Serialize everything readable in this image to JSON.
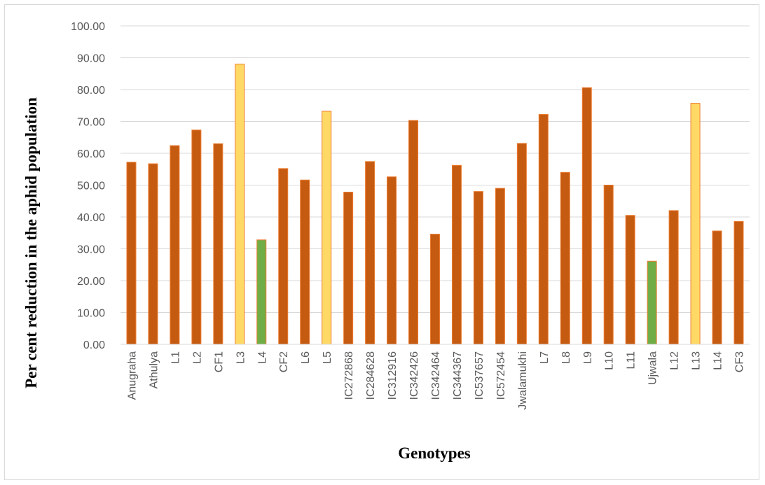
{
  "chart_data": {
    "type": "bar",
    "xlabel": "Genotypes",
    "ylabel": "Per cent reduction in the aphid population",
    "ylim": [
      0,
      100
    ],
    "yticks": [
      "0.00",
      "10.00",
      "20.00",
      "30.00",
      "40.00",
      "50.00",
      "60.00",
      "70.00",
      "80.00",
      "90.00",
      "100.00"
    ],
    "grid": true,
    "legend": "none",
    "categories": [
      "Anugraha",
      "Athulya",
      "L1",
      "L2",
      "CF1",
      "L3",
      "L4",
      "CF2",
      "L6",
      "L5",
      "IC272868",
      "IC284628",
      "IC312916",
      "IC342426",
      "IC342464",
      "IC344367",
      "IC537657",
      "IC572454",
      "Jwalamukhi",
      "L7",
      "L8",
      "L9",
      "L10",
      "L11",
      "Ujwala",
      "L12",
      "L13",
      "L14",
      "CF3"
    ],
    "values": [
      57.2,
      56.7,
      62.4,
      67.3,
      63.0,
      88.0,
      32.8,
      55.2,
      51.6,
      73.2,
      47.8,
      57.4,
      52.6,
      70.3,
      34.6,
      56.2,
      48.0,
      49.0,
      63.1,
      72.2,
      54.0,
      80.6,
      50.0,
      40.5,
      26.1,
      42.0,
      75.7,
      35.6,
      38.6
    ],
    "bar_colors": [
      "#c55a11",
      "#c55a11",
      "#c55a11",
      "#c55a11",
      "#c55a11",
      "#ffd966",
      "#70ad47",
      "#c55a11",
      "#c55a11",
      "#ffd966",
      "#c55a11",
      "#c55a11",
      "#c55a11",
      "#c55a11",
      "#c55a11",
      "#c55a11",
      "#c55a11",
      "#c55a11",
      "#c55a11",
      "#c55a11",
      "#c55a11",
      "#c55a11",
      "#c55a11",
      "#c55a11",
      "#70ad47",
      "#c55a11",
      "#ffd966",
      "#c55a11",
      "#c55a11"
    ],
    "bar_outline_color": "#ed7d31",
    "gridline_color": "#d9d9d9"
  }
}
